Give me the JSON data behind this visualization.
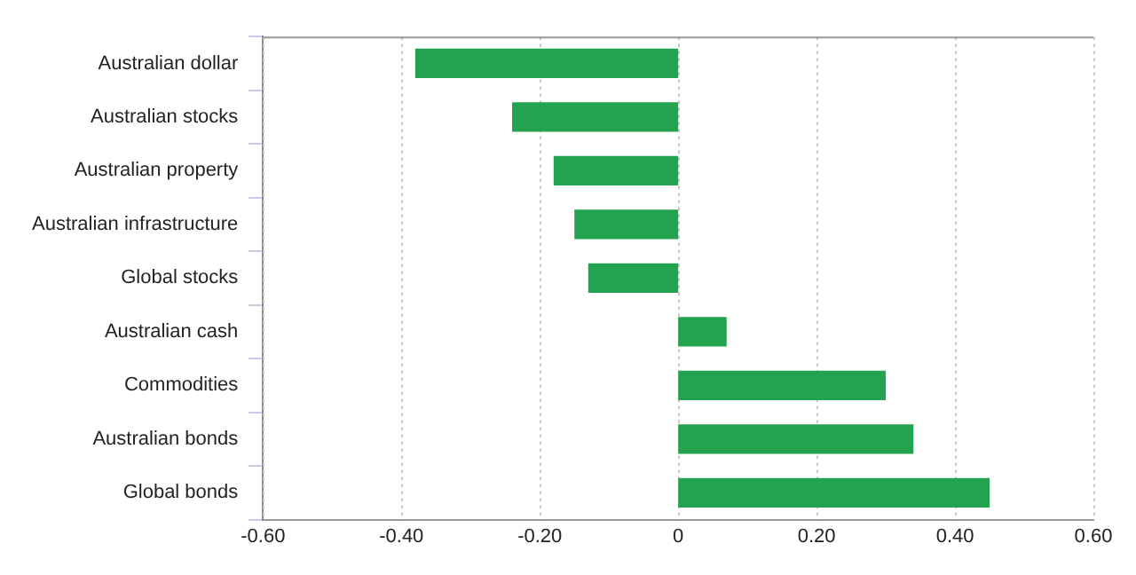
{
  "chart_data": {
    "type": "bar",
    "orientation": "horizontal",
    "categories": [
      "Australian dollar",
      "Australian stocks",
      "Australian property",
      "Australian infrastructure",
      "Global stocks",
      "Australian cash",
      "Commodities",
      "Australian bonds",
      "Global bonds"
    ],
    "values": [
      -0.38,
      -0.24,
      -0.18,
      -0.15,
      -0.13,
      0.07,
      0.3,
      0.34,
      0.45
    ],
    "color": "#23a34f",
    "xlim": [
      -0.6,
      0.6
    ],
    "xticks": [
      {
        "value": -0.6,
        "label": "-0.60"
      },
      {
        "value": -0.4,
        "label": "-0.40"
      },
      {
        "value": -0.2,
        "label": "-0.20"
      },
      0,
      {
        "value": 0.2,
        "label": "0.20"
      },
      {
        "value": 0.4,
        "label": "0.40"
      },
      {
        "value": 0.6,
        "label": "0.60"
      }
    ],
    "grid": "x"
  }
}
